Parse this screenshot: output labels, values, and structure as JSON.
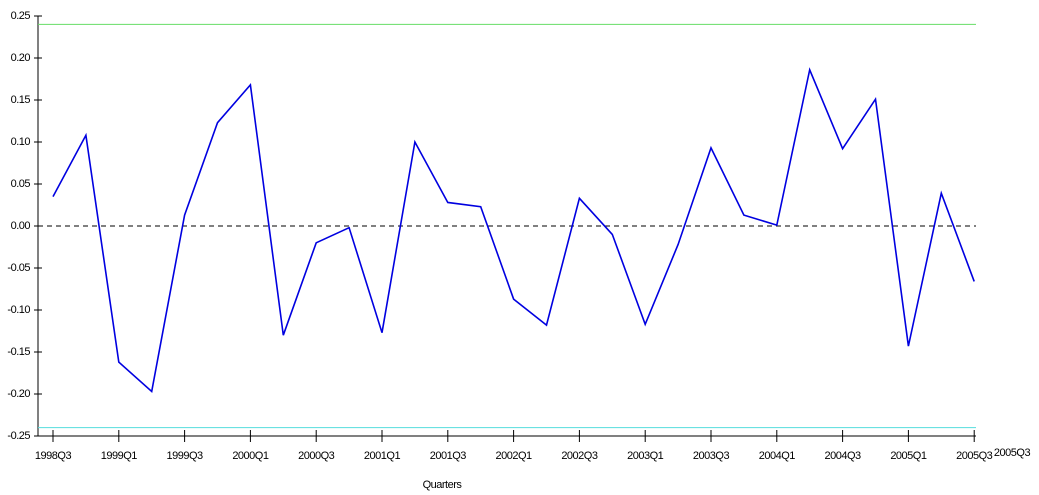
{
  "chart_data": {
    "type": "line",
    "x_label": "Quarters",
    "annotation": "2005Q3",
    "categories": [
      "1998Q3",
      null,
      "1999Q1",
      null,
      "1999Q3",
      null,
      "2000Q1",
      null,
      "2000Q3",
      null,
      "2001Q1",
      null,
      "2001Q3",
      null,
      "2002Q1",
      null,
      "2002Q3",
      null,
      "2003Q1",
      null,
      "2003Q3",
      null,
      "2004Q1",
      null,
      "2004Q3",
      null,
      "2005Q1",
      null,
      "2005Q3"
    ],
    "series": [
      {
        "color": "#0000e0",
        "values": [
          0.035,
          0.108,
          -0.162,
          -0.197,
          0.013,
          0.123,
          0.168,
          -0.13,
          -0.02,
          -0.002,
          -0.127,
          0.1,
          0.028,
          0.023,
          -0.087,
          -0.118,
          0.033,
          -0.01,
          -0.117,
          -0.022,
          0.093,
          0.013,
          0.001,
          0.186,
          0.092,
          0.151,
          -0.143,
          0.039,
          -0.066
        ]
      }
    ],
    "reference_lines": [
      {
        "value": 0.24,
        "color": "#66dd66"
      },
      {
        "value": -0.24,
        "color": "#55dddd"
      },
      {
        "value": 0,
        "color": "#000000",
        "dashed": true
      }
    ],
    "ylim": [
      -0.25,
      0.25
    ],
    "yticks": [
      0.25,
      {
        "value": 0.2,
        "label": "0.20"
      },
      0.15,
      {
        "value": 0.1,
        "label": "0.10"
      },
      0.05,
      {
        "value": 0,
        "label": "0.00"
      },
      -0.05,
      {
        "value": -0.1,
        "label": "-0.10"
      },
      -0.15,
      {
        "value": -0.2,
        "label": "-0.20"
      },
      -0.25
    ]
  }
}
